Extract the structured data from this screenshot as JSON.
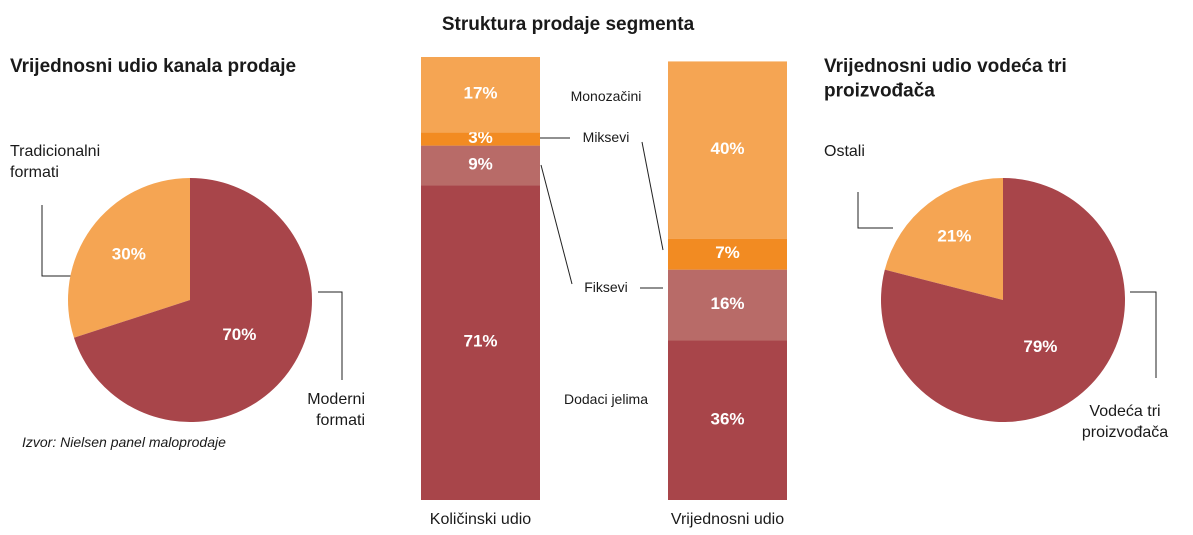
{
  "chart_data": [
    {
      "type": "pie",
      "title": "Vrijednosni udio kanala prodaje",
      "categories": [
        "Tradicionalni\nformati",
        "Moderni\nformati"
      ],
      "values": [
        30,
        70
      ],
      "value_labels": [
        "30%",
        "70%"
      ],
      "colors": [
        "#f5a553",
        "#a8454a"
      ],
      "source": "Izvor: Nielsen panel maloprodaje"
    },
    {
      "type": "stacked_bar",
      "title": "Struktura prodaje segmenta",
      "categories": [
        "Količinski udio",
        "Vrijednosni udio"
      ],
      "series": [
        {
          "name": "Dodaci jelima",
          "color": "#a8454a",
          "values": [
            71,
            36
          ],
          "value_labels": [
            "71%",
            "36%"
          ]
        },
        {
          "name": "Fiksevi",
          "color": "#b86b68",
          "values": [
            9,
            16
          ],
          "value_labels": [
            "9%",
            "16%"
          ]
        },
        {
          "name": "Miksevi",
          "color": "#f28b22",
          "values": [
            3,
            7
          ],
          "value_labels": [
            "3%",
            "7%"
          ]
        },
        {
          "name": "Monozačini",
          "color": "#f5a553",
          "values": [
            17,
            40
          ],
          "value_labels": [
            "17%",
            "40%"
          ]
        }
      ],
      "ylim": [
        0,
        100
      ]
    },
    {
      "type": "pie",
      "title": "Vrijednosni udio vodeća tri\nproizvođača",
      "categories": [
        "Ostali",
        "Vodeća tri\nproizvođača"
      ],
      "values": [
        21,
        79
      ],
      "value_labels": [
        "21%",
        "79%"
      ],
      "colors": [
        "#f5a553",
        "#a8454a"
      ]
    }
  ]
}
